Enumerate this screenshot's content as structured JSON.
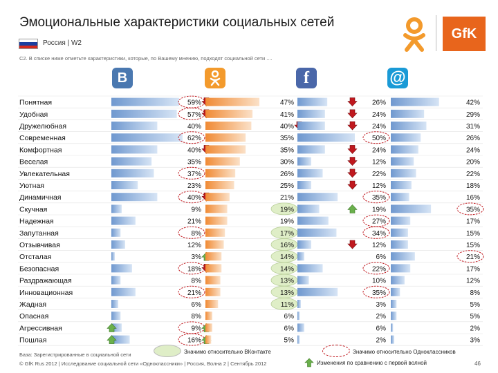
{
  "header": {
    "title": "Эмоциональные характеристики социальных сетей",
    "region": "Россия | W2",
    "question": "С2. В списке ниже отметьте характеристики, которые, по Вашему мнению, подходят социальной сети ....",
    "brand_logo": "GfK"
  },
  "colors": {
    "vk": "#4a78b0",
    "ok": "#f39a4a",
    "fb": "#4a67a9",
    "mail": "#1a9ad6",
    "bar_blue": "#8fb2dd",
    "bar_orange": "#f4a35f",
    "sig_red": "#c0181e",
    "sig_green": "#dfeec7",
    "arrow_up": "#6ab04c",
    "arrow_down": "#c0181e"
  },
  "icons": {
    "vk": "vk-logo-icon",
    "ok": "odnoklassniki-logo-icon",
    "fb": "facebook-logo-icon",
    "mail": "mail-ru-logo-icon"
  },
  "chart_data": {
    "type": "bar",
    "categories": [
      "Понятная",
      "Удобная",
      "Дружелюбная",
      "Современная",
      "Комфортная",
      "Веселая",
      "Увлекательная",
      "Уютная",
      "Динамичная",
      "Скучная",
      "Надежная",
      "Запутанная",
      "Отзывчивая",
      "Отсталая",
      "Безопасная",
      "Раздражающая",
      "Инновационная",
      "Жадная",
      "Опасная",
      "Агрессивная",
      "Пошлая"
    ],
    "series": [
      {
        "key": "vk",
        "values": [
          59,
          57,
          40,
          62,
          40,
          35,
          37,
          23,
          40,
          9,
          21,
          8,
          12,
          3,
          18,
          8,
          21,
          6,
          8,
          9,
          16
        ],
        "labels": [
          "59%",
          "57%",
          "40%",
          "62%",
          "40%",
          "35%",
          "37%",
          "23%",
          "40%",
          "9%",
          "21%",
          "8%",
          "12%",
          "3%",
          "18%",
          "8%",
          "21%",
          "6%",
          "8%",
          "9%",
          "16%"
        ],
        "arrows": [
          "down",
          "down",
          "",
          "",
          "down",
          "",
          "",
          "",
          "down",
          "",
          "",
          "",
          "",
          "up",
          "down",
          "",
          "",
          "",
          "",
          "up",
          "up"
        ],
        "circled": [
          true,
          true,
          false,
          true,
          false,
          false,
          true,
          false,
          true,
          false,
          false,
          true,
          false,
          false,
          true,
          false,
          true,
          false,
          false,
          true,
          true
        ],
        "highlighted": [
          false,
          false,
          false,
          false,
          false,
          false,
          false,
          false,
          false,
          false,
          false,
          false,
          false,
          false,
          false,
          false,
          false,
          false,
          false,
          false,
          false
        ]
      },
      {
        "key": "ok",
        "values": [
          47,
          41,
          40,
          35,
          35,
          30,
          26,
          25,
          21,
          19,
          19,
          17,
          16,
          14,
          14,
          13,
          13,
          11,
          6,
          6,
          5
        ],
        "labels": [
          "47%",
          "41%",
          "40%",
          "35%",
          "35%",
          "30%",
          "26%",
          "25%",
          "21%",
          "19%",
          "19%",
          "17%",
          "16%",
          "14%",
          "14%",
          "13%",
          "13%",
          "11%",
          "6%",
          "6%",
          "5%"
        ],
        "arrows": [
          "",
          "",
          "down",
          "",
          "",
          "",
          "",
          "",
          "",
          "",
          "",
          "",
          "",
          "",
          "",
          "",
          "",
          "",
          "",
          "",
          ""
        ],
        "circled": [
          false,
          false,
          false,
          false,
          false,
          false,
          false,
          false,
          false,
          false,
          false,
          false,
          false,
          false,
          false,
          false,
          false,
          false,
          false,
          false,
          false
        ],
        "highlighted": [
          false,
          false,
          false,
          false,
          false,
          false,
          false,
          false,
          false,
          true,
          false,
          true,
          true,
          true,
          true,
          true,
          true,
          true,
          false,
          false,
          false
        ]
      },
      {
        "key": "fb",
        "values": [
          26,
          24,
          24,
          50,
          24,
          12,
          22,
          12,
          35,
          19,
          27,
          34,
          12,
          6,
          22,
          10,
          35,
          3,
          2,
          6,
          2
        ],
        "labels": [
          "26%",
          "24%",
          "24%",
          "50%",
          "24%",
          "12%",
          "22%",
          "12%",
          "35%",
          "19%",
          "27%",
          "34%",
          "12%",
          "6%",
          "22%",
          "10%",
          "35%",
          "3%",
          "2%",
          "6%",
          "2%"
        ],
        "arrows": [
          "down",
          "down",
          "down",
          "",
          "down",
          "down",
          "down",
          "down",
          "",
          "up",
          "",
          "",
          "down",
          "",
          "",
          "",
          "",
          "",
          "",
          "",
          ""
        ],
        "circled": [
          false,
          false,
          false,
          true,
          false,
          false,
          false,
          false,
          true,
          false,
          true,
          true,
          false,
          false,
          true,
          false,
          true,
          false,
          false,
          false,
          false
        ],
        "highlighted": [
          false,
          false,
          false,
          false,
          false,
          false,
          false,
          false,
          false,
          false,
          false,
          false,
          false,
          false,
          false,
          false,
          false,
          false,
          false,
          false,
          false
        ]
      },
      {
        "key": "mail",
        "values": [
          42,
          29,
          31,
          26,
          24,
          20,
          22,
          18,
          16,
          35,
          17,
          15,
          15,
          21,
          17,
          12,
          8,
          5,
          5,
          2,
          3
        ],
        "labels": [
          "42%",
          "29%",
          "31%",
          "26%",
          "24%",
          "20%",
          "22%",
          "18%",
          "16%",
          "35%",
          "17%",
          "15%",
          "15%",
          "21%",
          "17%",
          "12%",
          "8%",
          "5%",
          "5%",
          "2%",
          "3%"
        ],
        "arrows": [
          "",
          "",
          "",
          "",
          "",
          "",
          "",
          "",
          "",
          "",
          "",
          "",
          "",
          "",
          "",
          "",
          "",
          "",
          "",
          "",
          ""
        ],
        "circled": [
          false,
          false,
          false,
          false,
          false,
          false,
          false,
          false,
          false,
          true,
          false,
          false,
          false,
          true,
          false,
          false,
          false,
          false,
          false,
          false,
          false
        ],
        "highlighted": [
          false,
          false,
          false,
          false,
          false,
          false,
          false,
          false,
          false,
          false,
          false,
          false,
          false,
          false,
          false,
          false,
          false,
          false,
          false,
          false,
          false
        ]
      }
    ],
    "xlim": [
      0,
      100
    ]
  },
  "legend": {
    "green_label": "Значимо относительно ВКонтакте",
    "red_label": "Значимо относительно Одноклассников",
    "arrow_label": "Изменения по сравнению с первой волной"
  },
  "footer": {
    "base": "База: Зарегистрированные в социальной сети",
    "copyright": "© GfK Rus 2012 | Исследование социальной сети «Одноклассники» | Россия, Волна 2 | Сентябрь 2012",
    "page": "46"
  }
}
